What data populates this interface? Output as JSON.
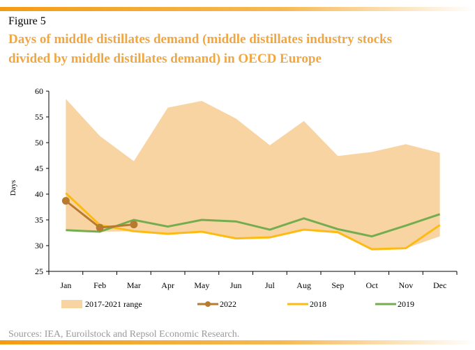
{
  "figure": "Figure 5",
  "source": "Sources: IEA, Euroilstock and Repsol Economic Research.",
  "chart_data": {
    "type": "line",
    "title": "Days of middle distillates demand (middle distillates industry stocks divided by middle distillates demand) in OECD Europe",
    "y_label": "Days",
    "categories": [
      "Jan",
      "Feb",
      "Mar",
      "Apr",
      "May",
      "Jun",
      "Jul",
      "Aug",
      "Sep",
      "Oct",
      "Nov",
      "Dec"
    ],
    "ylim": [
      25,
      60
    ],
    "yticks": [
      25,
      30,
      35,
      40,
      45,
      50,
      55,
      60
    ],
    "range": {
      "name": "2017-2021 range",
      "color": "#f9d4a3",
      "low": [
        33,
        32.7,
        32.8,
        32.3,
        32.7,
        31.4,
        31.6,
        33.1,
        32.6,
        29.3,
        29.5,
        31.8
      ],
      "high": [
        58.5,
        51.3,
        46.4,
        56.8,
        58.1,
        54.7,
        49.5,
        54.2,
        47.4,
        48.2,
        49.7,
        48
      ]
    },
    "series": [
      {
        "name": "2022",
        "color": "#b87a2e",
        "markers": true,
        "values": [
          38.7,
          33.5,
          34.1,
          null,
          null,
          null,
          null,
          null,
          null,
          null,
          null,
          null
        ]
      },
      {
        "name": "2018",
        "color": "#fdbb12",
        "values": [
          40.2,
          34,
          32.8,
          32.3,
          32.7,
          31.4,
          31.6,
          33.1,
          32.6,
          29.3,
          29.5,
          34
        ]
      },
      {
        "name": "2019",
        "color": "#74ad4f",
        "values": [
          33,
          32.7,
          35,
          33.7,
          35,
          34.7,
          33.1,
          35.3,
          33.2,
          31.8,
          33.9,
          36.1
        ]
      }
    ]
  }
}
